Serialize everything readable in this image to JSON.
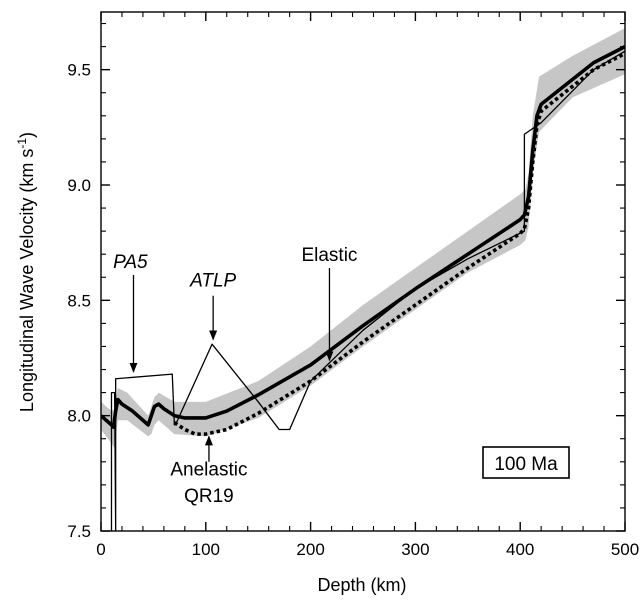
{
  "chart_data": {
    "type": "line",
    "xlabel": "Depth (km)",
    "ylabel": "Longitudinal Wave Velocity (km s-1)",
    "ylabel_parts": [
      "Longitudinal Wave Velocity (km s",
      "-1",
      ")"
    ],
    "xlim": [
      0,
      500
    ],
    "ylim": [
      7.5,
      9.75
    ],
    "x_ticks": [
      0,
      100,
      200,
      300,
      400,
      500
    ],
    "x_tick_labels": [
      "0",
      "100",
      "200",
      "300",
      "400",
      "500"
    ],
    "y_ticks": [
      7.5,
      8.0,
      8.5,
      9.0,
      9.5
    ],
    "y_tick_labels": [
      "7.5",
      "8.0",
      "8.5",
      "9.0",
      "9.5"
    ],
    "band": {
      "x": [
        0,
        10,
        13,
        16,
        25,
        45,
        48,
        51,
        55,
        70,
        100,
        150,
        200,
        250,
        300,
        350,
        400,
        405,
        408,
        412,
        418,
        450,
        500
      ],
      "upper": [
        8.06,
        8.02,
        8.03,
        8.12,
        8.1,
        8.0,
        8.04,
        8.08,
        8.1,
        8.06,
        8.06,
        8.15,
        8.3,
        8.48,
        8.64,
        8.8,
        8.96,
        8.98,
        9.05,
        9.3,
        9.47,
        9.56,
        9.68
      ],
      "lower": [
        7.94,
        7.88,
        7.86,
        7.98,
        7.98,
        7.91,
        7.92,
        7.96,
        7.98,
        7.92,
        7.91,
        7.99,
        8.13,
        8.3,
        8.46,
        8.62,
        8.74,
        8.76,
        8.82,
        9.05,
        9.23,
        9.38,
        9.48
      ]
    },
    "series": [
      {
        "name": "Elastic",
        "style": "thick",
        "x": [
          0,
          10,
          12,
          14,
          16,
          20,
          30,
          40,
          45,
          48,
          51,
          55,
          60,
          70,
          80,
          100,
          120,
          150,
          200,
          250,
          300,
          350,
          400,
          404,
          408,
          412,
          416,
          420,
          470,
          500
        ],
        "y": [
          8.0,
          7.96,
          7.95,
          8.02,
          8.07,
          8.05,
          8.02,
          7.98,
          7.96,
          8.0,
          8.04,
          8.05,
          8.03,
          8.0,
          7.99,
          7.99,
          8.02,
          8.09,
          8.22,
          8.39,
          8.55,
          8.7,
          8.85,
          8.87,
          8.95,
          9.15,
          9.3,
          9.35,
          9.53,
          9.6
        ]
      },
      {
        "name": "Anelastic QR19",
        "style": "dotted",
        "x": [
          70,
          80,
          90,
          100,
          120,
          150,
          200,
          250,
          300,
          350,
          400,
          404,
          408,
          412,
          416,
          420,
          470,
          500
        ],
        "y": [
          7.97,
          7.94,
          7.92,
          7.92,
          7.94,
          8.01,
          8.15,
          8.32,
          8.48,
          8.64,
          8.79,
          8.81,
          8.9,
          9.1,
          9.26,
          9.32,
          9.5,
          9.57
        ]
      },
      {
        "name": "PA5",
        "style": "thin",
        "x": [
          10,
          10,
          13,
          14,
          14,
          68,
          70,
          72
        ],
        "y": [
          7.5,
          8.1,
          8.1,
          7.5,
          8.16,
          8.18,
          7.96,
          7.97
        ]
      },
      {
        "name": "ATLP",
        "style": "thin",
        "x": [
          72,
          106,
          150,
          170,
          180,
          200,
          250,
          300,
          350,
          404,
          404,
          420,
          470,
          500
        ],
        "y": [
          7.97,
          8.31,
          8.06,
          7.94,
          7.94,
          8.15,
          8.37,
          8.55,
          8.68,
          8.8,
          9.22,
          9.27,
          9.5,
          9.58
        ]
      }
    ],
    "annotations": [
      {
        "text": "PA5",
        "italic": true,
        "label_x": 28,
        "label_y": 8.64,
        "arrow_from": [
          31,
          8.61
        ],
        "arrow_to": [
          31,
          8.19
        ]
      },
      {
        "text": "ATLP",
        "italic": true,
        "label_x": 107,
        "label_y": 8.56,
        "arrow_from": [
          107,
          8.52
        ],
        "arrow_to": [
          107,
          8.33
        ]
      },
      {
        "text": "Elastic",
        "italic": false,
        "label_x": 218,
        "label_y": 8.67,
        "arrow_from": [
          218,
          8.64
        ],
        "arrow_to": [
          218,
          8.24
        ]
      },
      {
        "text": "Anelastic",
        "italic": false,
        "label_x": 103,
        "label_y": 7.74,
        "arrow_from": [
          103,
          7.8
        ],
        "arrow_to": [
          103,
          7.91
        ]
      },
      {
        "text": "QR19",
        "italic": false,
        "label_x": 103,
        "label_y": 7.625,
        "arrow_from": null,
        "arrow_to": null
      }
    ],
    "inset_label": "100 Ma"
  }
}
